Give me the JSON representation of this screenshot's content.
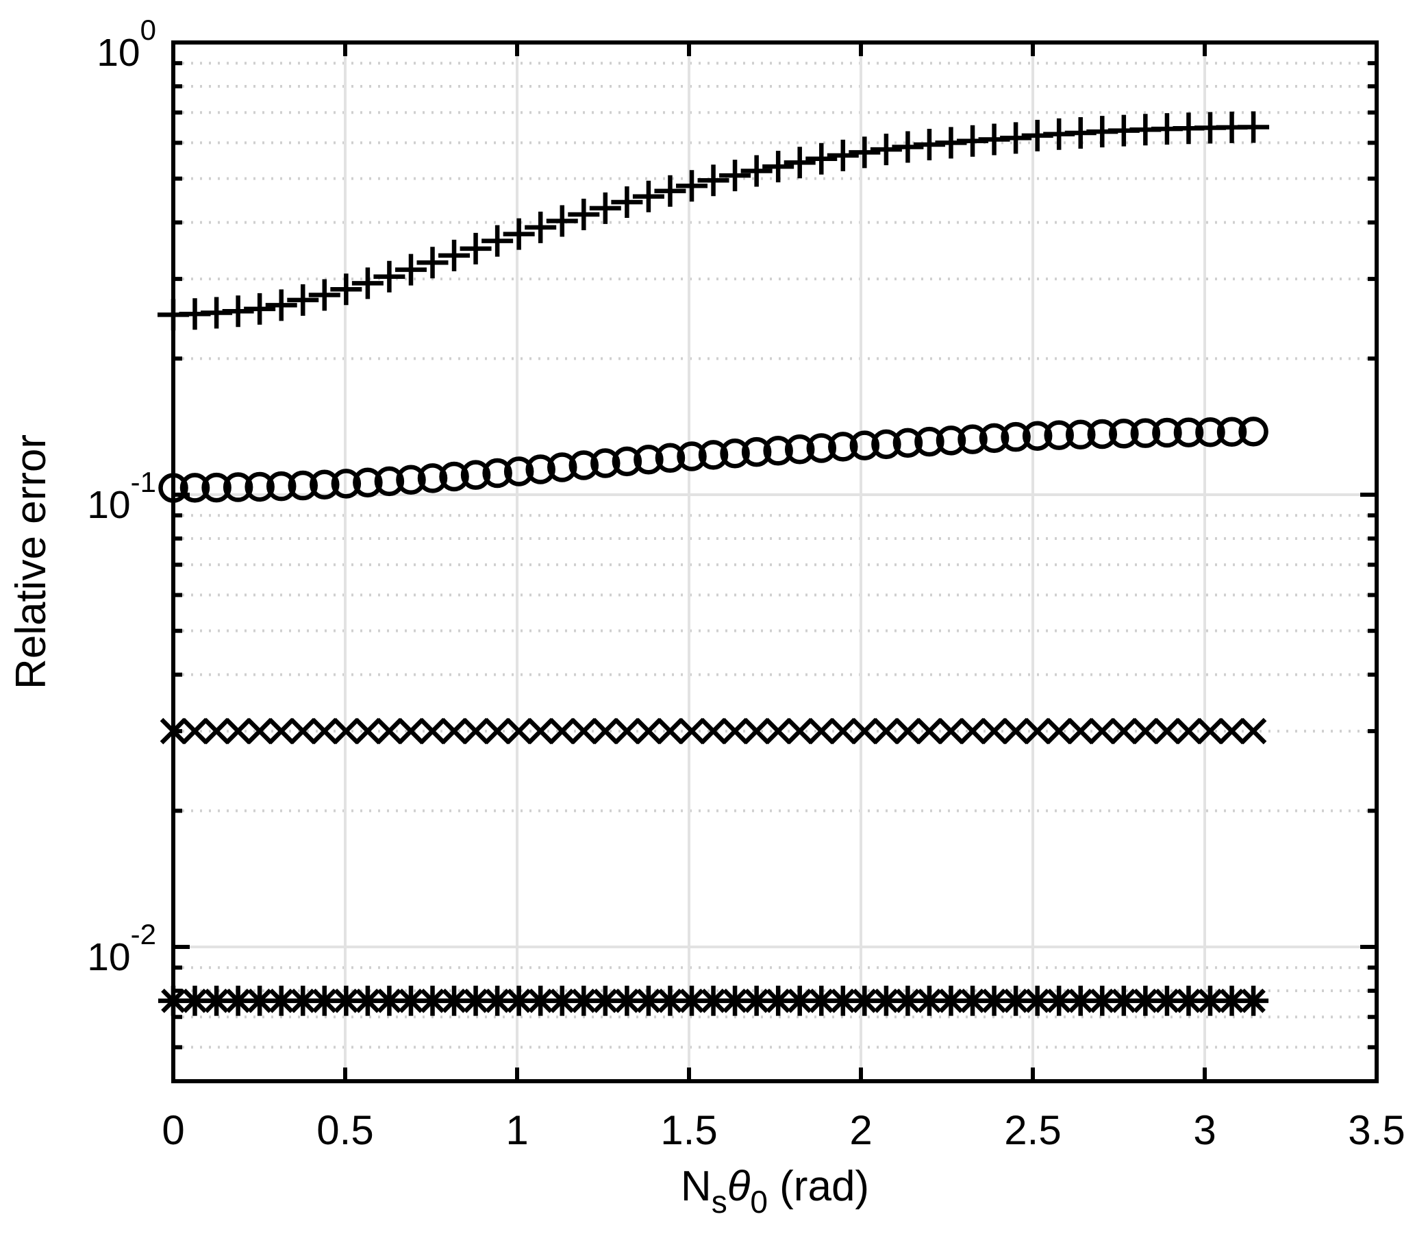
{
  "chart_data": {
    "type": "scatter",
    "title": "",
    "ylabel": "Relative error",
    "xlabel_parts": [
      {
        "t": "N",
        "style": "normal"
      },
      {
        "t": "s",
        "style": "sub"
      },
      {
        "t": "θ",
        "style": "italic"
      },
      {
        "t": "0",
        "style": "sub"
      },
      {
        "t": " (rad)",
        "style": "normal"
      }
    ],
    "xlabel_plain": "Nsθ0 (rad)",
    "yscale": "log",
    "xlim": [
      0,
      3.5
    ],
    "ylim": [
      0.005,
      1
    ],
    "grid": {
      "major": true,
      "minor": true,
      "minor_style": "dotted",
      "legend": "none"
    },
    "xtick_values": [
      0,
      0.5,
      1,
      1.5,
      2,
      2.5,
      3,
      3.5
    ],
    "xtick_labels": [
      "0",
      "0.5",
      "1",
      "1.5",
      "2",
      "2.5",
      "3",
      "3.5"
    ],
    "ytick_values": [
      1,
      0.1,
      0.01
    ],
    "ytick_labels": [
      {
        "base": "10",
        "exp": "0"
      },
      {
        "base": "10",
        "exp": "-1"
      },
      {
        "base": "10",
        "exp": "-2"
      }
    ],
    "yminor_values": [
      0.9,
      0.8,
      0.7,
      0.6,
      0.5,
      0.4,
      0.3,
      0.2,
      0.09,
      0.08,
      0.07,
      0.06,
      0.05,
      0.04,
      0.03,
      0.02,
      0.009,
      0.008,
      0.007,
      0.006
    ],
    "colors": {
      "foreground": "#000000",
      "background": "#ffffff",
      "grid_major": "#e2e2e2",
      "grid_minor": "#cfcfcf"
    },
    "x": [
      0.0,
      0.0628,
      0.1257,
      0.1885,
      0.2513,
      0.3142,
      0.377,
      0.4398,
      0.5027,
      0.5655,
      0.6283,
      0.6912,
      0.754,
      0.8168,
      0.8796,
      0.9425,
      1.0053,
      1.0681,
      1.131,
      1.1938,
      1.2566,
      1.3195,
      1.3823,
      1.4451,
      1.508,
      1.5708,
      1.6336,
      1.6965,
      1.7593,
      1.8221,
      1.885,
      1.9478,
      2.0106,
      2.0735,
      2.1363,
      2.1991,
      2.2619,
      2.3248,
      2.3876,
      2.4504,
      2.5133,
      2.5761,
      2.6389,
      2.7018,
      2.7646,
      2.8274,
      2.8903,
      2.9531,
      3.0159,
      3.0788,
      3.1416
    ],
    "series": [
      {
        "name": "plus-series",
        "marker": "plus",
        "y": [
          0.25,
          0.251,
          0.2525,
          0.2545,
          0.2575,
          0.2625,
          0.2695,
          0.2765,
          0.2845,
          0.2935,
          0.3035,
          0.3145,
          0.326,
          0.338,
          0.35,
          0.364,
          0.377,
          0.39,
          0.403,
          0.4165,
          0.43,
          0.4435,
          0.4565,
          0.4695,
          0.482,
          0.4955,
          0.508,
          0.52,
          0.5315,
          0.5425,
          0.553,
          0.5625,
          0.5715,
          0.58,
          0.5875,
          0.5945,
          0.6,
          0.6055,
          0.6105,
          0.615,
          0.6225,
          0.627,
          0.631,
          0.635,
          0.6385,
          0.6415,
          0.644,
          0.646,
          0.6478,
          0.649,
          0.65
        ]
      },
      {
        "name": "circle-series",
        "marker": "circle",
        "y": [
          0.1035,
          0.1036,
          0.1037,
          0.1039,
          0.1041,
          0.1044,
          0.1048,
          0.1053,
          0.1058,
          0.1064,
          0.1071,
          0.1079,
          0.1088,
          0.1097,
          0.1106,
          0.1116,
          0.1126,
          0.1138,
          0.115,
          0.1162,
          0.1174,
          0.1185,
          0.1196,
          0.1206,
          0.1216,
          0.1225,
          0.1234,
          0.1243,
          0.1251,
          0.126,
          0.1268,
          0.1277,
          0.1285,
          0.1293,
          0.1302,
          0.131,
          0.1318,
          0.1326,
          0.1334,
          0.1342,
          0.1349,
          0.1354,
          0.1358,
          0.1362,
          0.1365,
          0.1368,
          0.1371,
          0.1373,
          0.1375,
          0.1377,
          0.1379
        ]
      },
      {
        "name": "cross-series",
        "marker": "x",
        "y": [
          0.03,
          0.03,
          0.03,
          0.03,
          0.03,
          0.03,
          0.03,
          0.03,
          0.03,
          0.03,
          0.03,
          0.03,
          0.03,
          0.03,
          0.03,
          0.03,
          0.03,
          0.03,
          0.03,
          0.03,
          0.03,
          0.03,
          0.03,
          0.03,
          0.03,
          0.03,
          0.03,
          0.03,
          0.03,
          0.03,
          0.03,
          0.03,
          0.03,
          0.03,
          0.03,
          0.03,
          0.03,
          0.03,
          0.03,
          0.03,
          0.03,
          0.03,
          0.03,
          0.03,
          0.03,
          0.03,
          0.03,
          0.03,
          0.03,
          0.03,
          0.03
        ]
      },
      {
        "name": "asterisk-series",
        "marker": "asterisk",
        "y": [
          0.0076,
          0.0076,
          0.0076,
          0.0076,
          0.0076,
          0.0076,
          0.0076,
          0.0076,
          0.0076,
          0.0076,
          0.0076,
          0.0076,
          0.0076,
          0.0076,
          0.0076,
          0.0076,
          0.0076,
          0.0076,
          0.0076,
          0.0076,
          0.0076,
          0.0076,
          0.0076,
          0.0076,
          0.0076,
          0.0076,
          0.0076,
          0.0076,
          0.0076,
          0.0076,
          0.0076,
          0.0076,
          0.0076,
          0.0076,
          0.0076,
          0.0076,
          0.0076,
          0.0076,
          0.0076,
          0.0076,
          0.0076,
          0.0076,
          0.0076,
          0.0076,
          0.0076,
          0.0076,
          0.0076,
          0.0076,
          0.0076,
          0.0076,
          0.0076
        ]
      }
    ]
  }
}
